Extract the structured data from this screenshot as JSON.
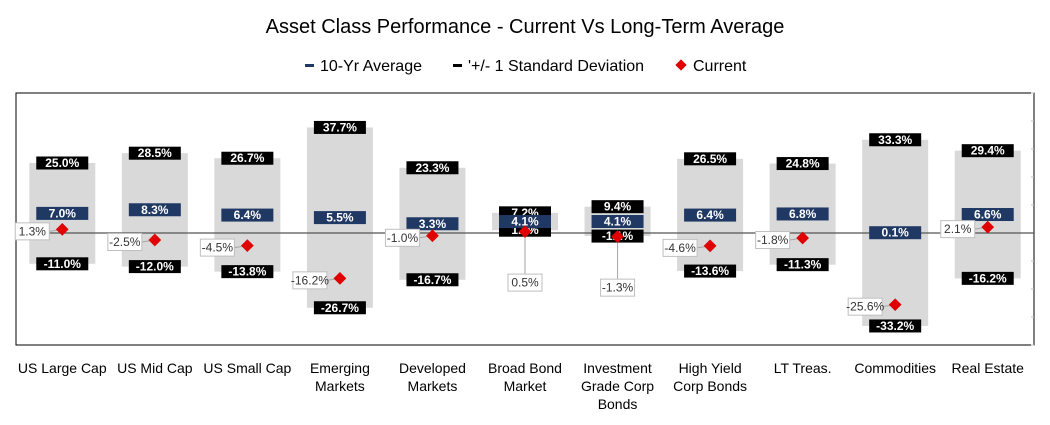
{
  "chart_data": {
    "type": "range-bar",
    "title": "Asset Class Performance - Current Vs Long-Term Average",
    "legend": [
      {
        "label": "10-Yr Average",
        "marker": "navy-dash"
      },
      {
        "label": "'+/- 1 Standard Deviation",
        "marker": "black-dash"
      },
      {
        "label": "Current",
        "marker": "red-diamond"
      }
    ],
    "categories": [
      [
        "US Large Cap"
      ],
      [
        "US Mid Cap"
      ],
      [
        "US Small Cap"
      ],
      [
        "Emerging",
        "Markets"
      ],
      [
        "Developed",
        "Markets"
      ],
      [
        "Broad Bond",
        "Market"
      ],
      [
        "Investment",
        "Grade Corp",
        "Bonds"
      ],
      [
        "High Yield",
        "Corp Bonds"
      ],
      [
        "LT Treas."
      ],
      [
        "Commodities"
      ],
      [
        "Real Estate"
      ]
    ],
    "series": [
      {
        "name": "+1 Standard Deviation",
        "values": [
          25.0,
          28.5,
          26.7,
          37.7,
          23.3,
          7.2,
          9.4,
          26.5,
          24.8,
          33.3,
          29.4
        ],
        "labels": [
          "25.0%",
          "28.5%",
          "26.7%",
          "37.7%",
          "23.3%",
          "7.2%",
          "9.4%",
          "26.5%",
          "24.8%",
          "33.3%",
          "29.4%"
        ]
      },
      {
        "name": "10-Yr Average",
        "values": [
          7.0,
          8.3,
          6.4,
          5.5,
          3.3,
          4.1,
          4.1,
          6.4,
          6.8,
          0.1,
          6.6
        ],
        "labels": [
          "7.0%",
          "8.3%",
          "6.4%",
          "5.5%",
          "3.3%",
          "4.1%",
          "4.1%",
          "6.4%",
          "6.8%",
          "0.1%",
          "6.6%"
        ]
      },
      {
        "name": "-1 Standard Deviation",
        "values": [
          -11.0,
          -12.0,
          -13.8,
          -26.7,
          -16.7,
          1.0,
          -1.1,
          -13.6,
          -11.3,
          -33.2,
          -16.2
        ],
        "labels": [
          "-11.0%",
          "-12.0%",
          "-13.8%",
          "-26.7%",
          "-16.7%",
          "1.0%",
          "-1.1%",
          "-13.6%",
          "-11.3%",
          "-33.2%",
          "-16.2%"
        ]
      },
      {
        "name": "Current",
        "values": [
          1.3,
          -2.5,
          -4.5,
          -16.2,
          -1.0,
          0.5,
          -1.3,
          -4.6,
          -1.8,
          -25.6,
          2.1
        ],
        "labels": [
          "1.3%",
          "-2.5%",
          "-4.5%",
          "-16.2%",
          "-1.0%",
          "0.5%",
          "-1.3%",
          "-4.6%",
          "-1.8%",
          "-25.6%",
          "2.1%"
        ]
      }
    ],
    "ylim": [
      -40,
      50
    ],
    "grid": false,
    "legend_position": "top-center",
    "colors": {
      "average": "#1f3864",
      "stddev": "#000000",
      "current": "#e00000",
      "range_fill": "#d9d9d9",
      "axis": "#555555",
      "plot_border": "#bfbfbf"
    }
  }
}
